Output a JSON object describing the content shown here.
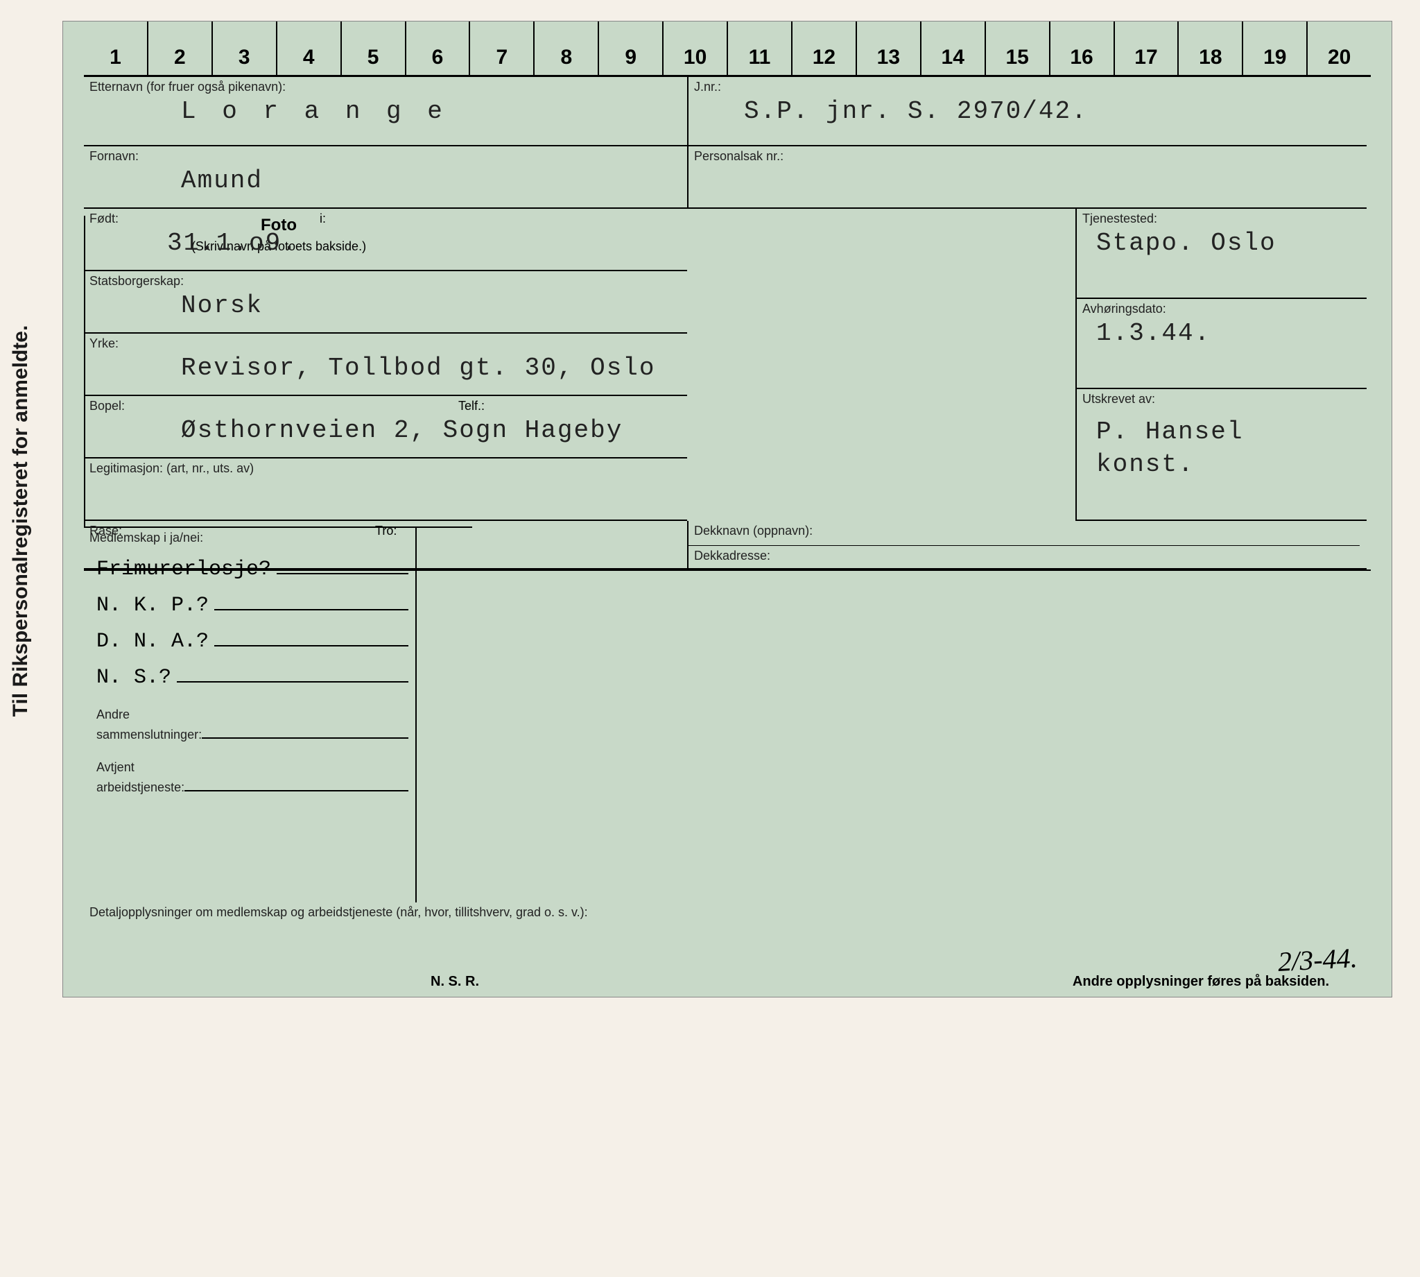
{
  "side_label": "Til Rikspersonalregisteret for anmeldte.",
  "ruler": [
    "1",
    "2",
    "3",
    "4",
    "5",
    "6",
    "7",
    "8",
    "9",
    "10",
    "11",
    "12",
    "13",
    "14",
    "15",
    "16",
    "17",
    "18",
    "19",
    "20"
  ],
  "labels": {
    "surname": "Etternavn (for fruer også pikenavn):",
    "jnr": "J.nr.:",
    "firstname": "Fornavn:",
    "persnr": "Personalsak nr.:",
    "born": "Født:",
    "born_i": "i:",
    "nation": "Statsborgerskap:",
    "job": "Yrke:",
    "addr": "Bopel:",
    "telf": "Telf.:",
    "legit": "Legitimasjon: (art, nr., uts. av)",
    "race": "Rase:",
    "tro": "Tro:",
    "photo": "Foto",
    "photo_sub": "(Skriv navn på fotoets bakside.)",
    "station": "Tjenestested:",
    "hdate": "Avhøringsdato:",
    "writer": "Utskrevet av:",
    "deck1": "Dekknavn (oppnavn):",
    "deck2": "Dekkadresse:",
    "member": "Medlemskap i ja/nei:",
    "detail": "Detaljopplysninger om medlemskap og arbeidstjeneste (når, hvor, tillitshverv, grad o. s. v.):",
    "m1": "Frimurerlosje?",
    "m2": "N. K. P.?",
    "m3": "D. N. A.?",
    "m4": "N. S.?",
    "m5a": "Andre",
    "m5b": "sammenslutninger:",
    "m6a": "Avtjent",
    "m6b": "arbeidstjeneste:",
    "nsr": "N. S. R.",
    "footer": "Andre opplysninger føres på baksiden."
  },
  "values": {
    "surname": "L o r a n g e",
    "jnr": "S.P. jnr. S. 2970/42.",
    "firstname": "Amund",
    "born": "31.1.o9.",
    "nation": "Norsk",
    "job": "Revisor, Tollbod gt. 30, Oslo",
    "addr": "Østhornveien 2, Sogn Hageby",
    "station": "Stapo. Oslo",
    "hdate": "1.3.44.",
    "writer1": "P. Hansel",
    "writer2": "konst.",
    "handdate": "2/3-44."
  },
  "colors": {
    "card_bg": "#c8d9c8",
    "page_bg": "#f5f0e8",
    "line": "#000000",
    "text": "#1a1a1a"
  }
}
